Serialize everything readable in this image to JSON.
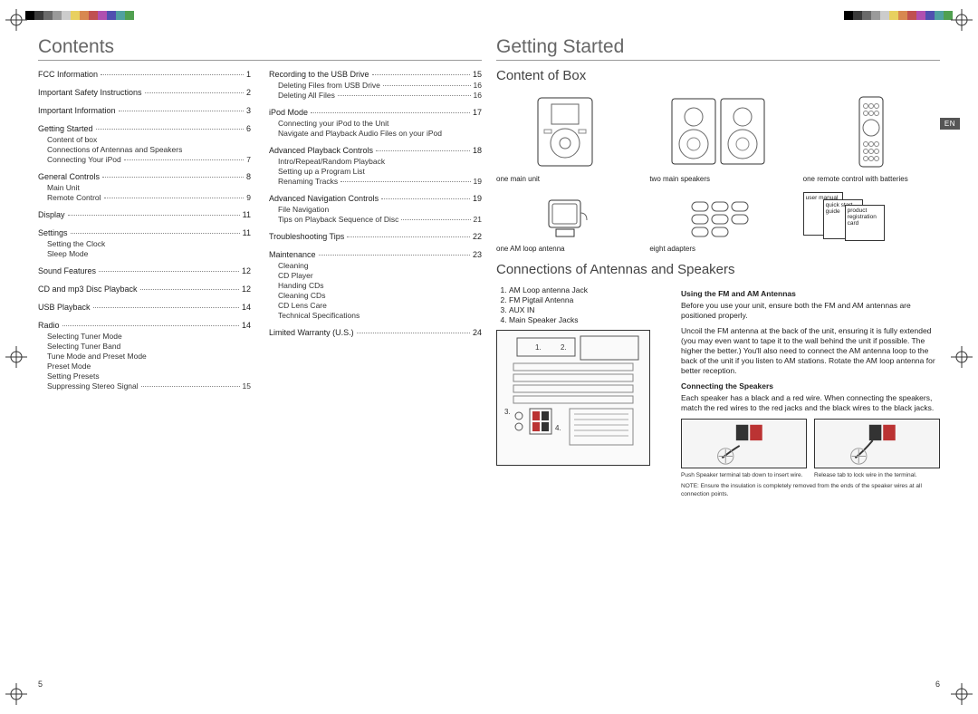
{
  "colorbar": [
    "#000000",
    "#3a3a3a",
    "#6a6a6a",
    "#9a9a9a",
    "#cccccc",
    "#e8d060",
    "#d88850",
    "#c05050",
    "#b050b0",
    "#5050b0",
    "#50a0a0",
    "#50a050"
  ],
  "left": {
    "title": "Contents",
    "pnum": "5",
    "col1": [
      {
        "t": "FCC Information",
        "p": "1"
      },
      {
        "t": "Important Safety Instructions",
        "p": "2"
      },
      {
        "t": "Important Information",
        "p": "3"
      },
      {
        "t": "Getting Started",
        "p": "6",
        "sub": [
          {
            "t": "Content of box"
          },
          {
            "t": "Connections of Antennas and Speakers"
          },
          {
            "t": "Connecting Your iPod",
            "p": "7"
          }
        ]
      },
      {
        "t": "General Controls",
        "p": "8",
        "sub": [
          {
            "t": "Main Unit"
          },
          {
            "t": "Remote Control",
            "p": "9"
          }
        ]
      },
      {
        "t": "Display",
        "p": "11"
      },
      {
        "t": "Settings",
        "p": "11",
        "sub": [
          {
            "t": "Setting the Clock"
          },
          {
            "t": "Sleep Mode"
          }
        ]
      },
      {
        "t": "Sound Features",
        "p": "12"
      },
      {
        "t": "CD and mp3 Disc Playback",
        "p": "12"
      },
      {
        "t": "USB Playback",
        "p": "14"
      },
      {
        "t": "Radio",
        "p": "14",
        "sub": [
          {
            "t": "Selecting Tuner Mode"
          },
          {
            "t": "Selecting Tuner Band"
          },
          {
            "t": "Tune Mode and Preset Mode"
          },
          {
            "t": "Preset Mode"
          },
          {
            "t": "Setting Presets"
          },
          {
            "t": "Suppressing Stereo Signal",
            "p": "15"
          }
        ]
      }
    ],
    "col2": [
      {
        "t": "Recording to the USB Drive",
        "p": "15",
        "sub": [
          {
            "t": "Deleting Files from USB Drive",
            "p": "16"
          },
          {
            "t": "Deleting All Files",
            "p": "16"
          }
        ]
      },
      {
        "t": "iPod Mode",
        "p": "17",
        "sub": [
          {
            "t": "Connecting your iPod to the Unit"
          },
          {
            "t": "Navigate and Playback Audio Files on your iPod"
          }
        ]
      },
      {
        "t": "Advanced Playback Controls",
        "p": "18",
        "sub": [
          {
            "t": "Intro/Repeat/Random Playback"
          },
          {
            "t": "Setting up a Program List"
          },
          {
            "t": "Renaming Tracks",
            "p": "19"
          }
        ]
      },
      {
        "t": "Advanced Navigation Controls",
        "p": "19",
        "sub": [
          {
            "t": "File Navigation"
          },
          {
            "t": "Tips on Playback Sequence of Disc",
            "p": "21"
          }
        ]
      },
      {
        "t": "Troubleshooting Tips",
        "p": "22"
      },
      {
        "t": "Maintenance",
        "p": "23",
        "sub": [
          {
            "t": "Cleaning"
          },
          {
            "t": "CD Player"
          },
          {
            "t": "Handing CDs"
          },
          {
            "t": "Cleaning CDs"
          },
          {
            "t": "CD Lens Care"
          },
          {
            "t": "Technical Specifications"
          }
        ]
      },
      {
        "t": "Limited Warranty (U.S.)",
        "p": "24"
      }
    ]
  },
  "right": {
    "title": "Getting Started",
    "pnum": "6",
    "en": "EN",
    "box_title": "Content of Box",
    "box_row1": [
      {
        "cap": "one main unit"
      },
      {
        "cap": "two main speakers"
      },
      {
        "cap": "one remote control with batteries"
      }
    ],
    "box_row2": [
      {
        "cap": "one AM loop antenna"
      },
      {
        "cap": "eight adapters"
      },
      {
        "cap": ""
      }
    ],
    "docs": [
      "user manual",
      "quick start guide",
      "product registration card"
    ],
    "conn_title": "Connections of Antennas and Speakers",
    "jacks": [
      "AM Loop antenna Jack",
      "FM Pigtail Antenna",
      "AUX IN",
      "Main Speaker Jacks"
    ],
    "h_fm": "Using the FM and AM Antennas",
    "p_fm1": "Before you use your unit, ensure both the FM and AM antennas are positioned properly.",
    "p_fm2": "Uncoil the FM antenna at the back of the unit, ensuring it is fully extended (you may even want to tape it to the wall behind the unit if possible. The higher the better.) You'll also need to connect the AM antenna loop to the back of the unit if you listen to AM stations. Rotate the AM loop antenna for better reception.",
    "h_spk": "Connecting the Speakers",
    "p_spk": "Each speaker has a black and a red wire. When connecting the speakers, match the red wires to the red jacks and the black wires to the black jacks.",
    "cap1": "Push Speaker terminal tab down to insert wire.",
    "cap2": "Release tab to lock wire in the terminal.",
    "note": "NOTE: Ensure the insulation is completely removed from the ends of the speaker wires at all connection points.",
    "panel_labels": [
      "1.",
      "2.",
      "3.",
      "4."
    ]
  }
}
